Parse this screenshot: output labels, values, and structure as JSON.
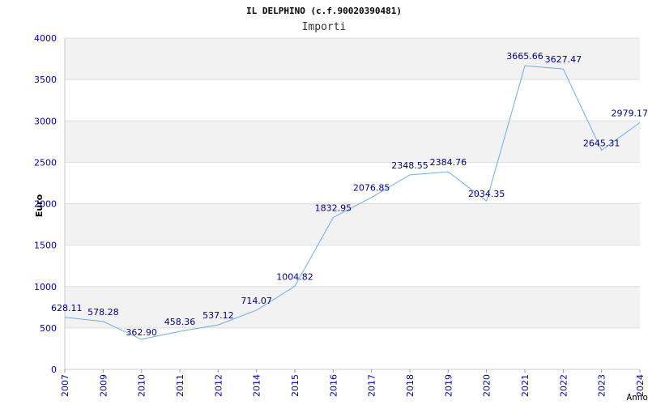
{
  "chart_data": {
    "type": "line",
    "title": "IL DELPHINO (c.f.90020390481)",
    "subtitle": "Importi",
    "xlabel": "Anno",
    "ylabel": "Euro",
    "ylim": [
      0,
      4000
    ],
    "yticks": [
      "0",
      "500",
      "1000",
      "1500",
      "2000",
      "2500",
      "3000",
      "3500",
      "4000"
    ],
    "grid": true,
    "categories": [
      "2007",
      "2009",
      "2010",
      "2011",
      "2012",
      "2014",
      "2015",
      "2016",
      "2017",
      "2018",
      "2019",
      "2020",
      "2021",
      "2022",
      "2023",
      "2024"
    ],
    "series": [
      {
        "values": [
          628.11,
          578.28,
          362.9,
          458.36,
          537.12,
          714.07,
          1004.82,
          1832.95,
          2076.85,
          2348.55,
          2384.76,
          2034.35,
          3665.66,
          3627.47,
          2645.31,
          2979.17
        ],
        "labels": [
          "628.11",
          "578.28",
          "362.90",
          "458.36",
          "537.12",
          "714.07",
          "1004.82",
          "1832.95",
          "2076.85",
          "2348.55",
          "2384.76",
          "2034.35",
          "3665.66",
          "3627.47",
          "2645.31",
          "2979.17"
        ]
      }
    ],
    "colors": {
      "line": "#6aaee8",
      "axis_text": "#0000aa",
      "label_text": "#000080",
      "band": "#f2f2f2",
      "grid": "#dddddd"
    }
  }
}
